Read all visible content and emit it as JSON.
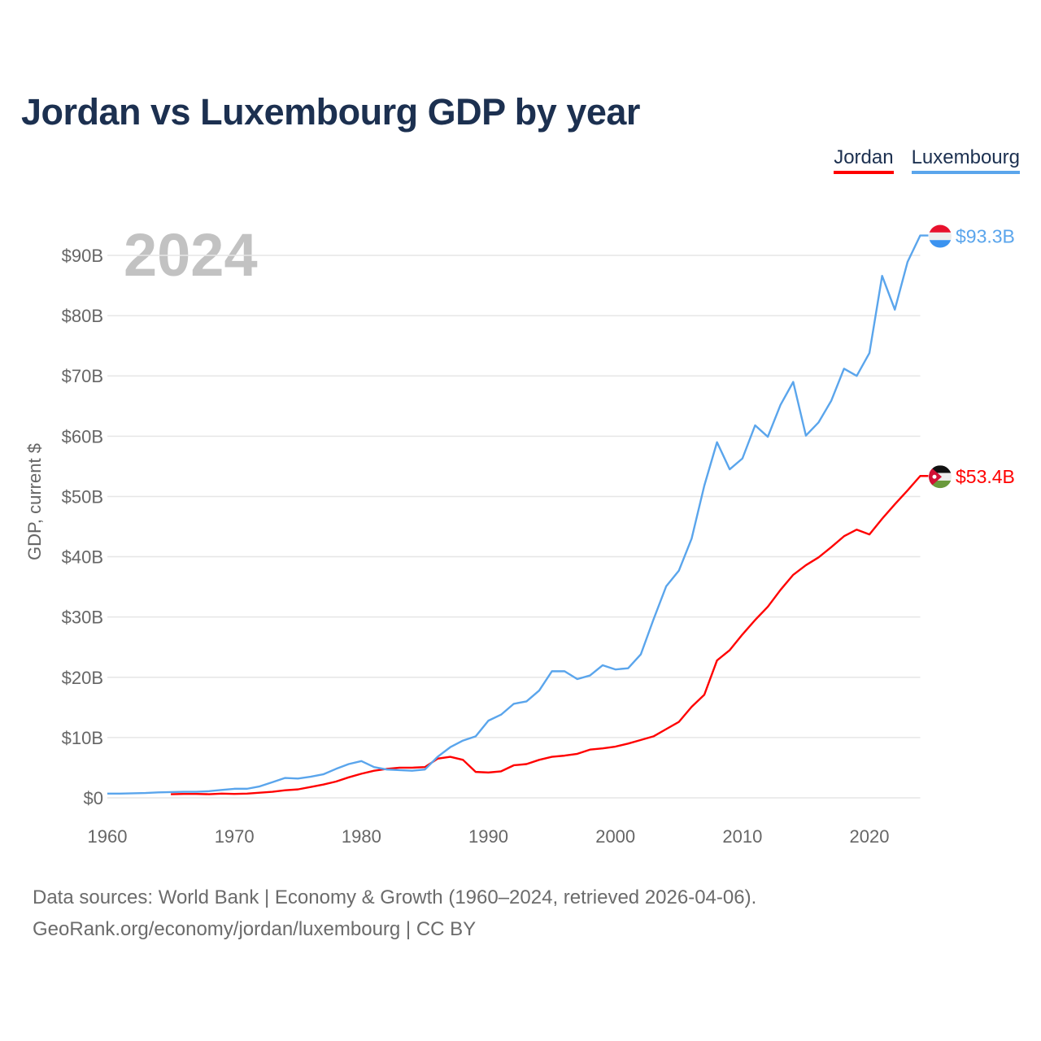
{
  "title": "Jordan vs Luxembourg GDP by year",
  "footer": {
    "line1": "Data sources: World Bank | Economy & Growth (1960–2024, retrieved 2026-04-06).",
    "line2": "GeoRank.org/economy/jordan/luxembourg | CC BY"
  },
  "chart_data": {
    "type": "line",
    "title": "Jordan vs Luxembourg GDP by year",
    "xlabel": "",
    "ylabel": "GDP, current $",
    "year_label": "2024",
    "xlim": [
      1960,
      2024
    ],
    "ylim": [
      0,
      90
    ],
    "grid": true,
    "legend_placement": "top-right",
    "x_ticks": [
      "1960",
      "1970",
      "1980",
      "1990",
      "2000",
      "2010",
      "2020"
    ],
    "x_tick_values": [
      1960,
      1970,
      1980,
      1990,
      2000,
      2010,
      2020
    ],
    "y_ticks": [
      "$0",
      "$10B",
      "$20B",
      "$30B",
      "$40B",
      "$50B",
      "$60B",
      "$70B",
      "$80B",
      "$90B"
    ],
    "y_tick_values": [
      0,
      10,
      20,
      30,
      40,
      50,
      60,
      70,
      80,
      90
    ],
    "series": [
      {
        "name": "Jordan",
        "color": "#ff0000",
        "end_label": "$53.4B",
        "flag": "jordan-flag",
        "start_year": 1965,
        "values": [
          0.6,
          0.65,
          0.65,
          0.6,
          0.7,
          0.65,
          0.7,
          0.85,
          1.0,
          1.25,
          1.4,
          1.8,
          2.2,
          2.7,
          3.4,
          4.0,
          4.5,
          4.8,
          5.0,
          5.0,
          5.1,
          6.5,
          6.8,
          6.3,
          4.3,
          4.2,
          4.4,
          5.4,
          5.6,
          6.3,
          6.8,
          7.0,
          7.3,
          8.0,
          8.2,
          8.5,
          9.0,
          9.6,
          10.2,
          11.4,
          12.6,
          15.1,
          17.1,
          22.8,
          24.5,
          27.1,
          29.5,
          31.7,
          34.5,
          37.0,
          38.6,
          39.9,
          41.6,
          43.4,
          44.5,
          43.7,
          46.3,
          48.7,
          51.0,
          53.4
        ]
      },
      {
        "name": "Luxembourg",
        "color": "#5aa5ec",
        "end_label": "$93.3B",
        "flag": "luxembourg-flag",
        "start_year": 1960,
        "values": [
          0.7,
          0.7,
          0.75,
          0.8,
          0.9,
          0.95,
          1.0,
          1.0,
          1.1,
          1.3,
          1.5,
          1.5,
          1.9,
          2.6,
          3.3,
          3.2,
          3.5,
          3.9,
          4.8,
          5.6,
          6.1,
          5.1,
          4.7,
          4.6,
          4.5,
          4.7,
          6.8,
          8.4,
          9.5,
          10.2,
          12.8,
          13.8,
          15.6,
          16.0,
          17.8,
          21.0,
          21.0,
          19.7,
          20.3,
          22.0,
          21.3,
          21.5,
          23.8,
          29.6,
          35.1,
          37.7,
          43.0,
          51.8,
          59.0,
          54.5,
          56.3,
          61.8,
          59.9,
          65.2,
          69.0,
          60.1,
          62.3,
          65.9,
          71.2,
          70.0,
          73.8,
          86.6,
          81.0,
          88.9,
          93.3
        ]
      }
    ]
  }
}
